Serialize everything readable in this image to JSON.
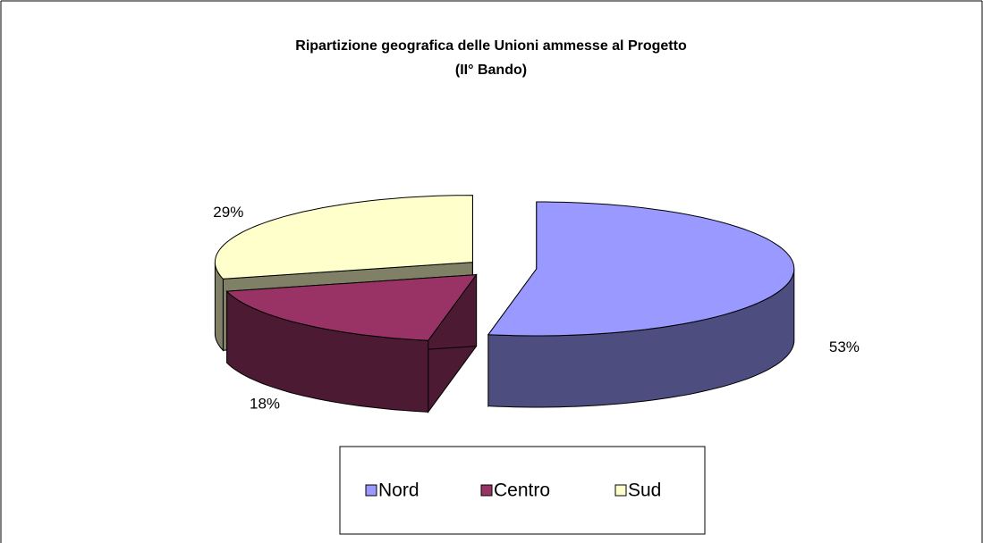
{
  "chart_data": {
    "type": "pie3d",
    "title": "Ripartizione geografica delle Unioni ammesse al Progetto",
    "subtitle": "(II° Bando)",
    "categories": [
      "Nord",
      "Centro",
      "Sud"
    ],
    "values": [
      53,
      18,
      29
    ],
    "value_labels": [
      "53%",
      "18%",
      "29%"
    ],
    "colors": [
      "#9999ff",
      "#993366",
      "#ffffcc"
    ],
    "legend": "bottom"
  }
}
